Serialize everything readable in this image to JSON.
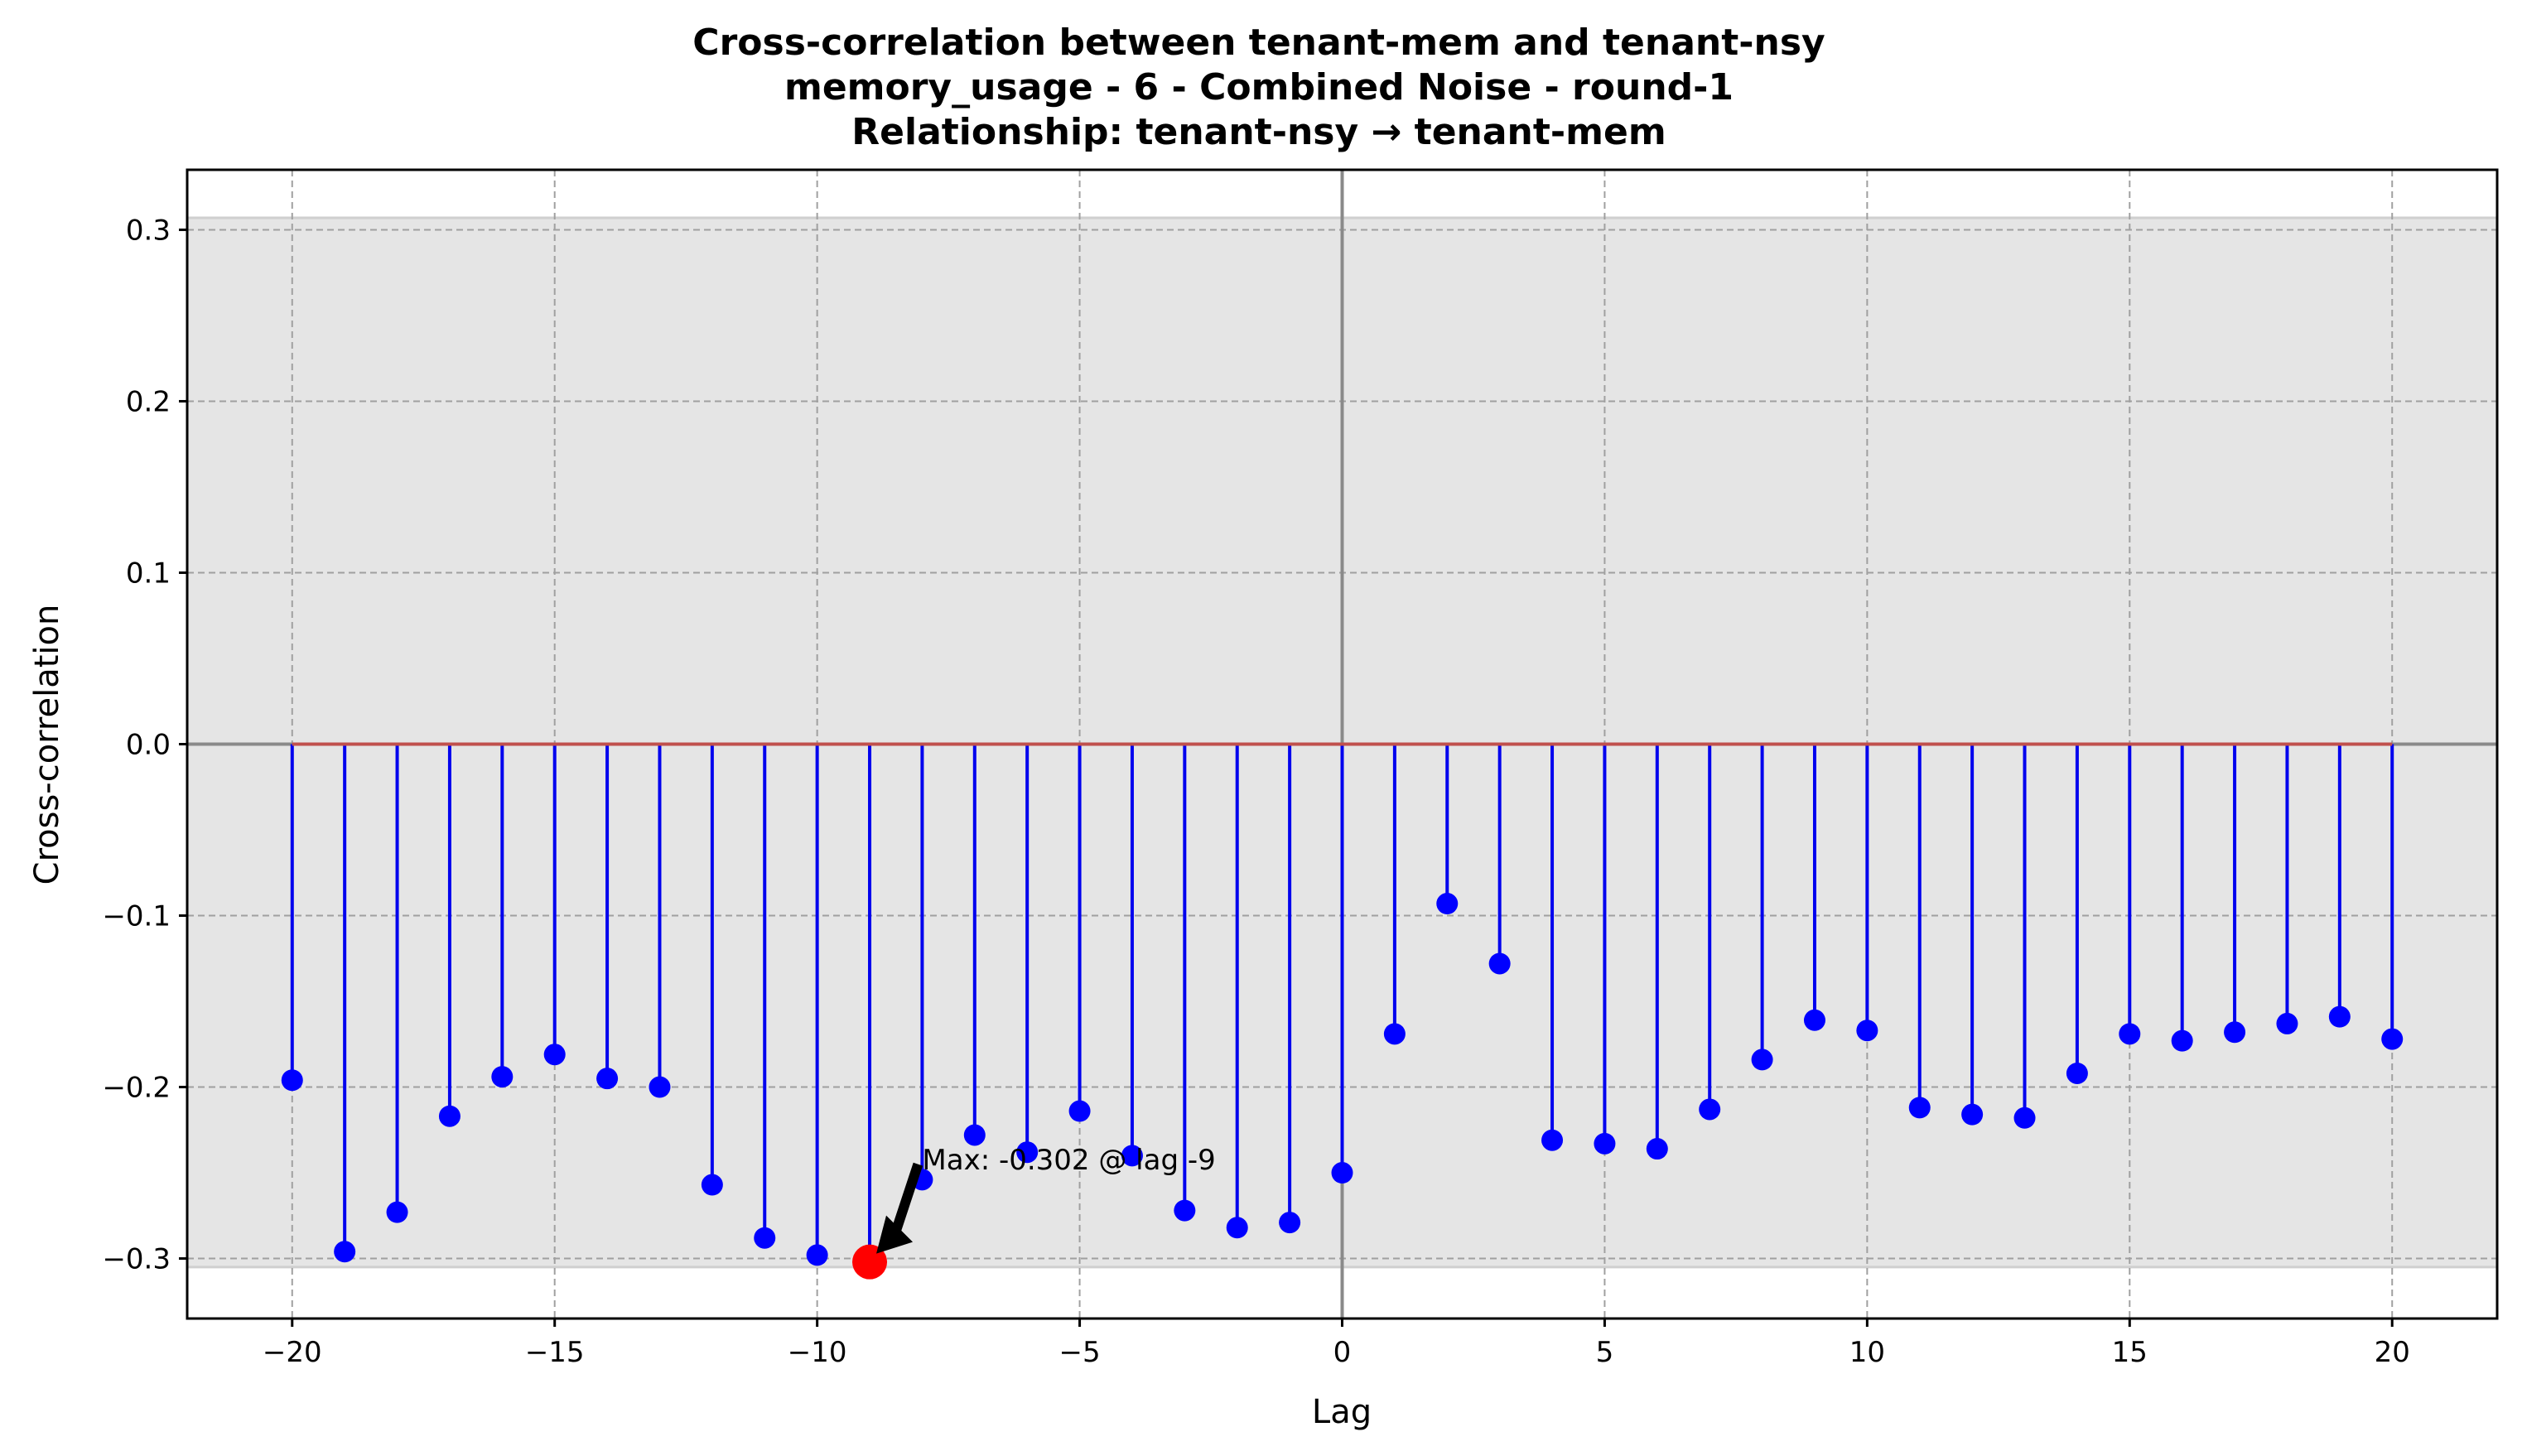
{
  "chart_data": {
    "type": "stem",
    "title_lines": [
      "Cross-correlation between tenant-mem and tenant-nsy",
      "memory_usage - 6 - Combined Noise - round-1",
      "Relationship: tenant-nsy → tenant-mem"
    ],
    "xlabel": "Lag",
    "ylabel": "Cross-correlation",
    "xlim": [
      -22,
      22
    ],
    "ylim": [
      -0.335,
      0.335
    ],
    "xticks": [
      -20,
      -15,
      -10,
      -5,
      0,
      5,
      10,
      15,
      20
    ],
    "xtick_labels": [
      "−20",
      "−15",
      "−10",
      "−5",
      "0",
      "5",
      "10",
      "15",
      "20"
    ],
    "yticks": [
      -0.3,
      -0.2,
      -0.1,
      0.0,
      0.1,
      0.2,
      0.3
    ],
    "ytick_labels": [
      "−0.3",
      "−0.2",
      "−0.1",
      "0.0",
      "0.1",
      "0.2",
      "0.3"
    ],
    "grid": true,
    "confidence_band": [
      -0.305,
      0.307
    ],
    "x": [
      -20,
      -19,
      -18,
      -17,
      -16,
      -15,
      -14,
      -13,
      -12,
      -11,
      -10,
      -9,
      -8,
      -7,
      -6,
      -5,
      -4,
      -3,
      -2,
      -1,
      0,
      1,
      2,
      3,
      4,
      5,
      6,
      7,
      8,
      9,
      10,
      11,
      12,
      13,
      14,
      15,
      16,
      17,
      18,
      19,
      20
    ],
    "values": [
      -0.196,
      -0.296,
      -0.273,
      -0.217,
      -0.194,
      -0.181,
      -0.195,
      -0.2,
      -0.257,
      -0.288,
      -0.298,
      -0.302,
      -0.254,
      -0.228,
      -0.238,
      -0.214,
      -0.24,
      -0.272,
      -0.282,
      -0.279,
      -0.25,
      -0.169,
      -0.093,
      -0.128,
      -0.231,
      -0.233,
      -0.236,
      -0.213,
      -0.184,
      -0.161,
      -0.167,
      -0.212,
      -0.216,
      -0.218,
      -0.192,
      -0.169,
      -0.173,
      -0.168,
      -0.163,
      -0.159,
      -0.172
    ],
    "stem_color": "#0000ee",
    "marker_color": "#0000ff",
    "highlight_color": "#ff0000",
    "baseline_color": "#c0504d",
    "band_color": "#e5e5e5",
    "highlight": {
      "x": -9,
      "y": -0.302
    },
    "annotation": "Max: -0.302 @ lag -9"
  }
}
